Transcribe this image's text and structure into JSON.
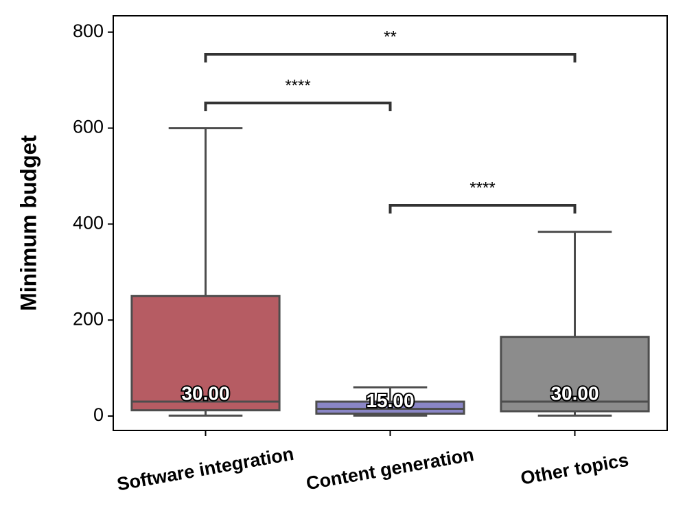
{
  "chart_data": {
    "type": "box",
    "ylabel": "Minimum budget",
    "categories": [
      "Software integration",
      "Content generation",
      "Other topics"
    ],
    "colors": [
      "#b65c63",
      "#8a86c6",
      "#8c8c8c"
    ],
    "whislo": [
      1,
      1,
      1
    ],
    "q1": [
      12,
      5,
      10
    ],
    "median": [
      30,
      15,
      30
    ],
    "q3": [
      250,
      30,
      165
    ],
    "whishi": [
      600,
      60,
      384
    ],
    "median_labels": [
      "30.00",
      "15.00",
      "30.00"
    ],
    "annotations": [
      "****",
      "****",
      "**"
    ],
    "ylim": [
      -30,
      834
    ],
    "yticks": [
      0,
      200,
      400,
      600,
      800
    ]
  }
}
